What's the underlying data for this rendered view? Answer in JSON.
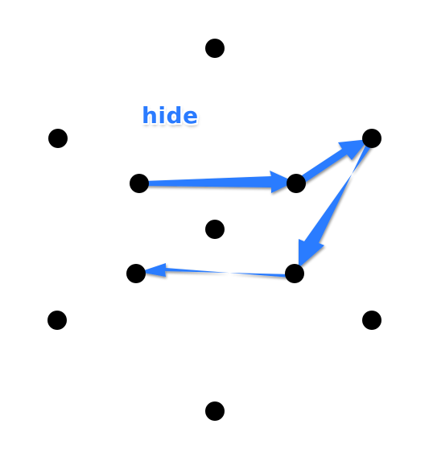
{
  "annotation": {
    "label": "hide",
    "color": "#2a7bff"
  },
  "dot_color": "#000000",
  "arrow_color": "#2a7bff"
}
